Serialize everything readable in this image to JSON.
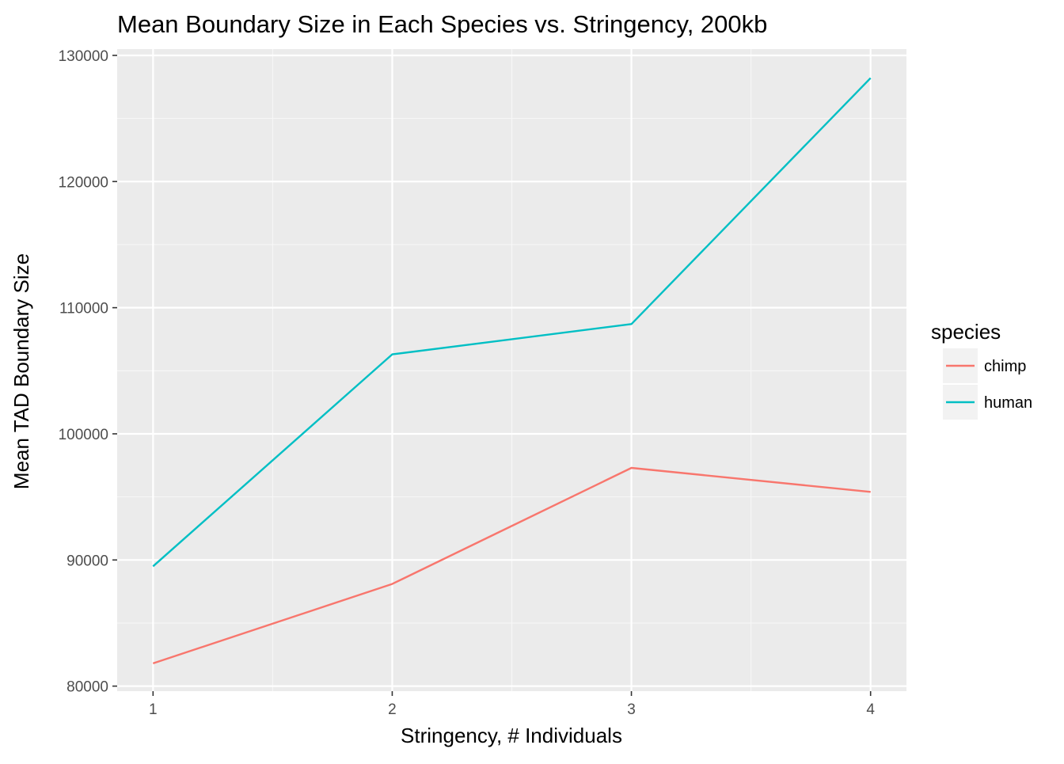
{
  "chart_data": {
    "type": "line",
    "title": "Mean Boundary Size in Each Species vs. Stringency, 200kb",
    "xlabel": "Stringency, # Individuals",
    "ylabel": "Mean TAD Boundary Size",
    "x": [
      1,
      2,
      3,
      4
    ],
    "x_ticks": [
      "1",
      "2",
      "3",
      "4"
    ],
    "xlim": [
      0.85,
      4.15
    ],
    "y_ticks": [
      "80000",
      "90000",
      "100000",
      "110000",
      "120000",
      "130000"
    ],
    "ylim": [
      79600,
      130500
    ],
    "grid": true,
    "legend": {
      "title": "species",
      "position": "right"
    },
    "series": [
      {
        "name": "chimp",
        "color": "#F8766D",
        "values": [
          81800,
          88100,
          97300,
          95400
        ]
      },
      {
        "name": "human",
        "color": "#00BFC4",
        "values": [
          89500,
          106300,
          108700,
          128200
        ]
      }
    ]
  }
}
